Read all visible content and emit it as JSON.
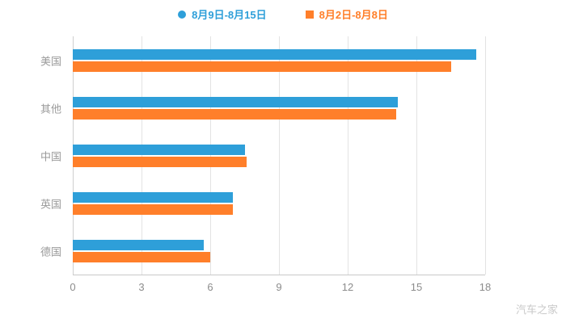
{
  "legend": [
    {
      "label": "8月9日-8月15日",
      "color": "#2e9fd9",
      "marker": "circle"
    },
    {
      "label": "8月2日-8月8日",
      "color": "#ff7f2a",
      "marker": "square"
    }
  ],
  "watermark": "汽车之家",
  "chart_data": {
    "type": "bar",
    "orientation": "horizontal",
    "title": "",
    "xlabel": "",
    "ylabel": "",
    "categories": [
      "美国",
      "其他",
      "中国",
      "英国",
      "德国"
    ],
    "series": [
      {
        "name": "8月9日-8月15日",
        "color": "#2e9fd9",
        "values": [
          17.6,
          14.2,
          7.5,
          7.0,
          5.7
        ]
      },
      {
        "name": "8月2日-8月8日",
        "color": "#ff7f2a",
        "values": [
          16.5,
          14.1,
          7.6,
          7.0,
          6.0
        ]
      }
    ],
    "xticks": [
      0,
      3,
      6,
      9,
      12,
      15,
      18
    ],
    "xlim": [
      0,
      18
    ],
    "grid": true,
    "legend_position": "top"
  }
}
